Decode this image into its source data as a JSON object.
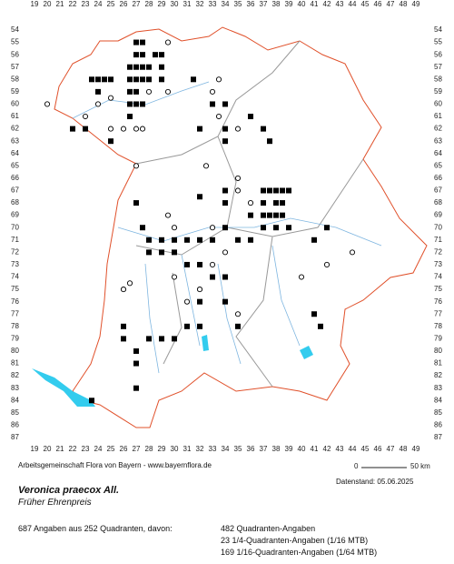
{
  "grid": {
    "columns": [
      19,
      20,
      21,
      22,
      23,
      24,
      25,
      26,
      27,
      28,
      29,
      30,
      31,
      32,
      33,
      34,
      35,
      36,
      37,
      38,
      39,
      40,
      41,
      42,
      43,
      44,
      45,
      46,
      47,
      48,
      49
    ],
    "rows": [
      54,
      55,
      56,
      57,
      58,
      59,
      60,
      61,
      62,
      63,
      64,
      65,
      66,
      67,
      68,
      69,
      70,
      71,
      72,
      73,
      74,
      75,
      76,
      77,
      78,
      79,
      80,
      81,
      82,
      83,
      84,
      85,
      86,
      87
    ]
  },
  "credit": "Arbeitsgemeinschaft Flora von Bayern - www.bayernflora.de",
  "scale": {
    "start": "0",
    "end": "50 km"
  },
  "date": "Datenstand: 05.06.2025",
  "species": {
    "scientific_name": "Veronica praecox All.",
    "common_name": "Früher Ehrenpreis"
  },
  "summary": {
    "total": "687 Angaben aus 252 Quadranten, davon:",
    "details": [
      "482 Quadranten-Angaben",
      "23 1/4-Quadranten-Angaben (1/16 MTB)",
      "169 1/16-Quadranten-Angaben (1/64 MTB)"
    ]
  },
  "occurrences": [
    {
      "x": 27,
      "y": 55,
      "symbol": "filled"
    },
    {
      "x": 27.5,
      "y": 55,
      "symbol": "filled"
    },
    {
      "x": 27,
      "y": 56,
      "symbol": "filled"
    },
    {
      "x": 27.5,
      "y": 56,
      "symbol": "filled"
    },
    {
      "x": 28.5,
      "y": 56,
      "symbol": "filled"
    },
    {
      "x": 29,
      "y": 56,
      "symbol": "filled"
    },
    {
      "x": 26.5,
      "y": 57,
      "symbol": "filled"
    },
    {
      "x": 27,
      "y": 57,
      "symbol": "filled"
    },
    {
      "x": 27.5,
      "y": 57,
      "symbol": "filled"
    },
    {
      "x": 28,
      "y": 57,
      "symbol": "filled"
    },
    {
      "x": 29,
      "y": 57,
      "symbol": "filled"
    },
    {
      "x": 26.5,
      "y": 58,
      "symbol": "filled"
    },
    {
      "x": 27,
      "y": 58,
      "symbol": "filled"
    },
    {
      "x": 27.5,
      "y": 58,
      "symbol": "filled"
    },
    {
      "x": 28,
      "y": 58,
      "symbol": "filled"
    },
    {
      "x": 29,
      "y": 58,
      "symbol": "filled"
    },
    {
      "x": 26.5,
      "y": 59,
      "symbol": "filled"
    },
    {
      "x": 27,
      "y": 59,
      "symbol": "filled"
    },
    {
      "x": 26.5,
      "y": 60,
      "symbol": "filled"
    },
    {
      "x": 27,
      "y": 60,
      "symbol": "filled"
    },
    {
      "x": 27.5,
      "y": 60,
      "symbol": "filled"
    },
    {
      "x": 26.5,
      "y": 61,
      "symbol": "filled"
    },
    {
      "x": 23.5,
      "y": 58,
      "symbol": "filled"
    },
    {
      "x": 24,
      "y": 58,
      "symbol": "filled"
    },
    {
      "x": 24.5,
      "y": 58,
      "symbol": "filled"
    },
    {
      "x": 25,
      "y": 58,
      "symbol": "filled"
    },
    {
      "x": 24,
      "y": 59,
      "symbol": "filled"
    },
    {
      "x": 22,
      "y": 62,
      "symbol": "filled"
    },
    {
      "x": 23,
      "y": 62,
      "symbol": "filled"
    },
    {
      "x": 25,
      "y": 63,
      "symbol": "filled"
    },
    {
      "x": 34,
      "y": 62,
      "symbol": "filled"
    },
    {
      "x": 34,
      "y": 63,
      "symbol": "filled"
    },
    {
      "x": 37,
      "y": 62,
      "symbol": "filled"
    },
    {
      "x": 37.5,
      "y": 63,
      "symbol": "filled"
    },
    {
      "x": 36,
      "y": 61,
      "symbol": "filled"
    },
    {
      "x": 33,
      "y": 60,
      "symbol": "filled"
    },
    {
      "x": 32,
      "y": 62,
      "symbol": "filled"
    },
    {
      "x": 31.5,
      "y": 58,
      "symbol": "filled"
    },
    {
      "x": 34,
      "y": 60,
      "symbol": "filled"
    },
    {
      "x": 29.5,
      "y": 55,
      "symbol": "open"
    },
    {
      "x": 29.5,
      "y": 59,
      "symbol": "open"
    },
    {
      "x": 28,
      "y": 59,
      "symbol": "open"
    },
    {
      "x": 25,
      "y": 59.5,
      "symbol": "open"
    },
    {
      "x": 24,
      "y": 60,
      "symbol": "open"
    },
    {
      "x": 20,
      "y": 60,
      "symbol": "open"
    },
    {
      "x": 23,
      "y": 61,
      "symbol": "open"
    },
    {
      "x": 25,
      "y": 62,
      "symbol": "open"
    },
    {
      "x": 26,
      "y": 62,
      "symbol": "open"
    },
    {
      "x": 27,
      "y": 62,
      "symbol": "open"
    },
    {
      "x": 27.5,
      "y": 62,
      "symbol": "open"
    },
    {
      "x": 33.5,
      "y": 58,
      "symbol": "open"
    },
    {
      "x": 33,
      "y": 59,
      "symbol": "open"
    },
    {
      "x": 33.5,
      "y": 61,
      "symbol": "open"
    },
    {
      "x": 35,
      "y": 62,
      "symbol": "open"
    },
    {
      "x": 32.5,
      "y": 65,
      "symbol": "open"
    },
    {
      "x": 37,
      "y": 67,
      "symbol": "filled"
    },
    {
      "x": 37.5,
      "y": 67,
      "symbol": "filled"
    },
    {
      "x": 38,
      "y": 67,
      "symbol": "filled"
    },
    {
      "x": 38.5,
      "y": 67,
      "symbol": "filled"
    },
    {
      "x": 39,
      "y": 67,
      "symbol": "filled"
    },
    {
      "x": 37,
      "y": 68,
      "symbol": "filled"
    },
    {
      "x": 38,
      "y": 68,
      "symbol": "filled"
    },
    {
      "x": 38.5,
      "y": 68,
      "symbol": "filled"
    },
    {
      "x": 36,
      "y": 69,
      "symbol": "filled"
    },
    {
      "x": 37,
      "y": 69,
      "symbol": "filled"
    },
    {
      "x": 37.5,
      "y": 69,
      "symbol": "filled"
    },
    {
      "x": 38,
      "y": 69,
      "symbol": "filled"
    },
    {
      "x": 38.5,
      "y": 69,
      "symbol": "filled"
    },
    {
      "x": 37,
      "y": 70,
      "symbol": "filled"
    },
    {
      "x": 38,
      "y": 70,
      "symbol": "filled"
    },
    {
      "x": 39,
      "y": 70,
      "symbol": "filled"
    },
    {
      "x": 36,
      "y": 71,
      "symbol": "filled"
    },
    {
      "x": 35,
      "y": 71,
      "symbol": "filled"
    },
    {
      "x": 34,
      "y": 70,
      "symbol": "filled"
    },
    {
      "x": 33,
      "y": 71,
      "symbol": "filled"
    },
    {
      "x": 32,
      "y": 71,
      "symbol": "filled"
    },
    {
      "x": 31,
      "y": 71,
      "symbol": "filled"
    },
    {
      "x": 30,
      "y": 71,
      "symbol": "filled"
    },
    {
      "x": 29,
      "y": 71,
      "symbol": "filled"
    },
    {
      "x": 28,
      "y": 71,
      "symbol": "filled"
    },
    {
      "x": 28,
      "y": 72,
      "symbol": "filled"
    },
    {
      "x": 29,
      "y": 72,
      "symbol": "filled"
    },
    {
      "x": 30,
      "y": 72,
      "symbol": "filled"
    },
    {
      "x": 27.5,
      "y": 70,
      "symbol": "filled"
    },
    {
      "x": 27,
      "y": 68,
      "symbol": "filled"
    },
    {
      "x": 32,
      "y": 67.5,
      "symbol": "filled"
    },
    {
      "x": 34,
      "y": 68,
      "symbol": "filled"
    },
    {
      "x": 34,
      "y": 67,
      "symbol": "filled"
    },
    {
      "x": 42,
      "y": 70,
      "symbol": "filled"
    },
    {
      "x": 41,
      "y": 71,
      "symbol": "filled"
    },
    {
      "x": 35,
      "y": 66,
      "symbol": "open"
    },
    {
      "x": 35,
      "y": 67,
      "symbol": "open"
    },
    {
      "x": 36,
      "y": 68,
      "symbol": "open"
    },
    {
      "x": 29.5,
      "y": 69,
      "symbol": "open"
    },
    {
      "x": 30,
      "y": 70,
      "symbol": "open"
    },
    {
      "x": 33,
      "y": 70,
      "symbol": "open"
    },
    {
      "x": 30,
      "y": 74,
      "symbol": "open"
    },
    {
      "x": 34,
      "y": 72,
      "symbol": "open"
    },
    {
      "x": 33,
      "y": 73,
      "symbol": "open"
    },
    {
      "x": 32,
      "y": 75,
      "symbol": "open"
    },
    {
      "x": 31,
      "y": 76,
      "symbol": "open"
    },
    {
      "x": 35,
      "y": 77,
      "symbol": "open"
    },
    {
      "x": 27,
      "y": 65,
      "symbol": "open"
    },
    {
      "x": 26,
      "y": 75,
      "symbol": "open"
    },
    {
      "x": 26.5,
      "y": 74.5,
      "symbol": "open"
    },
    {
      "x": 42,
      "y": 73,
      "symbol": "open"
    },
    {
      "x": 40,
      "y": 74,
      "symbol": "open"
    },
    {
      "x": 44,
      "y": 72,
      "symbol": "open"
    },
    {
      "x": 26,
      "y": 78,
      "symbol": "filled"
    },
    {
      "x": 26,
      "y": 79,
      "symbol": "filled"
    },
    {
      "x": 27,
      "y": 81,
      "symbol": "filled"
    },
    {
      "x": 27,
      "y": 80,
      "symbol": "filled"
    },
    {
      "x": 28,
      "y": 79,
      "symbol": "filled"
    },
    {
      "x": 29,
      "y": 79,
      "symbol": "filled"
    },
    {
      "x": 30,
      "y": 79,
      "symbol": "filled"
    },
    {
      "x": 31,
      "y": 78,
      "symbol": "filled"
    },
    {
      "x": 32,
      "y": 78,
      "symbol": "filled"
    },
    {
      "x": 32,
      "y": 76,
      "symbol": "filled"
    },
    {
      "x": 27,
      "y": 83,
      "symbol": "filled"
    },
    {
      "x": 23.5,
      "y": 84,
      "symbol": "filled"
    },
    {
      "x": 35,
      "y": 78,
      "symbol": "filled"
    },
    {
      "x": 41.5,
      "y": 78,
      "symbol": "filled"
    },
    {
      "x": 41,
      "y": 77,
      "symbol": "filled"
    },
    {
      "x": 32,
      "y": 73,
      "symbol": "filled"
    },
    {
      "x": 33,
      "y": 74,
      "symbol": "filled"
    },
    {
      "x": 34,
      "y": 74,
      "symbol": "filled"
    },
    {
      "x": 31,
      "y": 73,
      "symbol": "filled"
    },
    {
      "x": 34,
      "y": 76,
      "symbol": "filled"
    }
  ]
}
